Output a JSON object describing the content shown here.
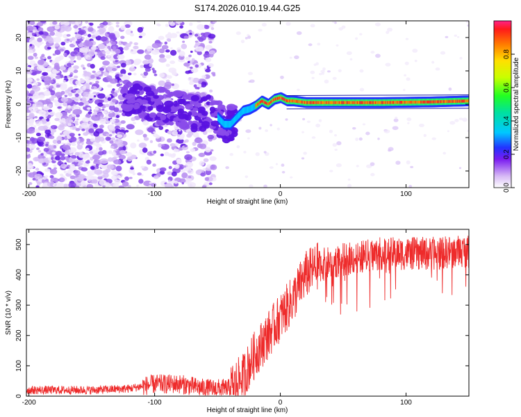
{
  "title": "S174.2026.010.19.44.G25",
  "colors": {
    "snr_line": "#ee2b2b",
    "axis": "#000000",
    "background": "#ffffff",
    "scatter_palette": [
      "#f1e8fb",
      "#d9c2f7",
      "#b488f0",
      "#8a4cea",
      "#5a12e0"
    ]
  },
  "chart_data": [
    {
      "type": "heatmap",
      "title": "",
      "xlabel": "Height of straight line (km)",
      "ylabel": "Frequency (Hz)",
      "xlim": [
        -202,
        150
      ],
      "ylim": [
        -25,
        25
      ],
      "x_ticks": [
        -200,
        -100,
        0,
        100
      ],
      "x_tick_labels": [
        "-200",
        "-100",
        "0",
        "100"
      ],
      "y_ticks": [
        -20,
        -10,
        0,
        10,
        20
      ],
      "y_tick_labels": [
        "-20",
        "-10",
        "0",
        "10",
        "20"
      ],
      "colorbar": {
        "label": "Normalized spectral amplitude",
        "range": [
          0,
          1
        ],
        "ticks": [
          0.0,
          0.2,
          0.4,
          0.6,
          0.8
        ],
        "tick_labels": [
          "0.0",
          "0.2",
          "0.4",
          "0.6",
          "0.8"
        ]
      },
      "ridge": {
        "description_points_x": [
          -60,
          -50,
          -45,
          -40,
          -35,
          -30,
          -25,
          -20,
          -15,
          -10,
          -5,
          0,
          5,
          10,
          20,
          40,
          80,
          120,
          150
        ],
        "description_points_y": [
          -2.0,
          -4.0,
          -6.0,
          -6.0,
          -4.0,
          -2.0,
          -1.5,
          -0.5,
          1.0,
          0.0,
          1.5,
          2.0,
          1.0,
          1.0,
          0.5,
          0.5,
          0.5,
          0.7,
          1.0
        ]
      }
    },
    {
      "type": "line",
      "title": "",
      "xlabel": "Height of straight line (km)",
      "ylabel": "SNR (10 * v/v)",
      "xlim": [
        -202,
        150
      ],
      "ylim": [
        0,
        550
      ],
      "x_ticks": [
        -200,
        -100,
        0,
        100
      ],
      "x_tick_labels": [
        "-200",
        "-100",
        "0",
        "100"
      ],
      "y_ticks": [
        0,
        100,
        200,
        300,
        400,
        500
      ],
      "y_tick_labels": [
        "0",
        "100",
        "200",
        "300",
        "400",
        "500"
      ],
      "series": [
        {
          "name": "SNR",
          "trend_x": [
            -200,
            -150,
            -120,
            -100,
            -80,
            -60,
            -40,
            -30,
            -20,
            -10,
            0,
            10,
            20,
            30,
            50,
            80,
            100,
            120,
            150
          ],
          "trend_y": [
            20,
            20,
            25,
            40,
            40,
            25,
            25,
            60,
            140,
            200,
            260,
            320,
            400,
            430,
            450,
            470,
            470,
            470,
            480
          ]
        }
      ]
    }
  ]
}
